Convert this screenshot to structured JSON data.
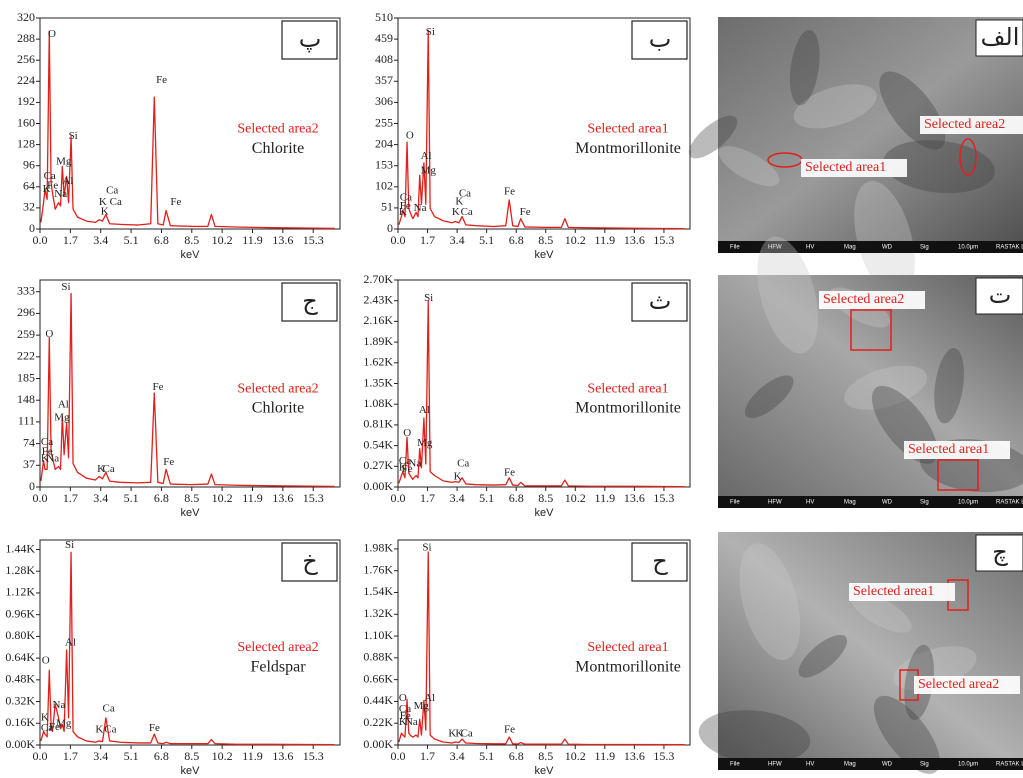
{
  "chart_data": [
    {
      "type": "line",
      "label": "پ",
      "area": "Selected area2",
      "mineral": "Chlorite",
      "xlabel": "keV",
      "color": "#e0201b",
      "xlim": [
        0,
        16.8
      ],
      "xticks": [
        {
          "value": 0,
          "label": "0.0"
        },
        1.7,
        3.4,
        5.1,
        6.8,
        8.5,
        10.2,
        11.9,
        13.6,
        15.3
      ],
      "ylim": [
        0,
        320
      ],
      "yticks": [
        0,
        32,
        64,
        96,
        128,
        160,
        192,
        224,
        256,
        288,
        320
      ],
      "x": [
        0.05,
        0.2,
        0.28,
        0.4,
        0.52,
        0.62,
        0.7,
        0.85,
        1.04,
        1.15,
        1.25,
        1.35,
        1.49,
        1.6,
        1.74,
        1.85,
        2.1,
        2.6,
        3.1,
        3.31,
        3.5,
        3.69,
        3.9,
        4.5,
        5.5,
        6.2,
        6.4,
        6.6,
        6.9,
        7.06,
        7.3,
        8.5,
        9.4,
        9.6,
        9.8,
        11,
        13,
        16.5
      ],
      "values": [
        10,
        40,
        60,
        45,
        300,
        70,
        55,
        30,
        40,
        35,
        95,
        50,
        80,
        40,
        140,
        30,
        18,
        12,
        10,
        14,
        12,
        22,
        8,
        7,
        6,
        8,
        200,
        8,
        6,
        28,
        5,
        4,
        4,
        22,
        4,
        3,
        2,
        1
      ],
      "annotations": [
        {
          "text": "O",
          "x": 0.45,
          "y": 295
        },
        {
          "text": "Si",
          "x": 1.6,
          "y": 140
        },
        {
          "text": "Mg",
          "x": 0.9,
          "y": 102
        },
        {
          "text": "Ca",
          "x": 0.2,
          "y": 80
        },
        {
          "text": "Al",
          "x": 1.25,
          "y": 72
        },
        {
          "text": "Fe",
          "x": 0.4,
          "y": 65
        },
        {
          "text": "K",
          "x": 0.15,
          "y": 60
        },
        {
          "text": "Na",
          "x": 0.8,
          "y": 52
        },
        {
          "text": "Fe",
          "x": 6.5,
          "y": 225
        },
        {
          "text": "Fe",
          "x": 7.3,
          "y": 40
        },
        {
          "text": "Ca",
          "x": 3.7,
          "y": 58
        },
        {
          "text": "K",
          "x": 3.3,
          "y": 40
        },
        {
          "text": "Ca",
          "x": 3.9,
          "y": 40
        },
        {
          "text": "K",
          "x": 3.4,
          "y": 26
        }
      ]
    },
    {
      "type": "line",
      "label": "ب",
      "area": "Selected area1",
      "mineral": "Montmorillonite",
      "xlabel": "keV",
      "color": "#e0201b",
      "xlim": [
        0,
        16.8
      ],
      "xticks": [
        {
          "value": 0,
          "label": "0.0"
        },
        1.7,
        3.4,
        5.1,
        6.8,
        8.5,
        10.2,
        11.9,
        13.6,
        15.3
      ],
      "ylim": [
        0,
        510
      ],
      "yticks": [
        0,
        51,
        102,
        153,
        204,
        255,
        306,
        357,
        408,
        459,
        510
      ],
      "x": [
        0.05,
        0.2,
        0.28,
        0.4,
        0.52,
        0.62,
        0.7,
        0.85,
        1.04,
        1.15,
        1.25,
        1.35,
        1.49,
        1.6,
        1.74,
        1.85,
        2.1,
        2.6,
        3.1,
        3.31,
        3.5,
        3.69,
        3.9,
        4.5,
        5.5,
        6.2,
        6.4,
        6.6,
        6.9,
        7.06,
        7.3,
        8.5,
        9.4,
        9.6,
        9.8,
        11,
        13,
        16.5
      ],
      "values": [
        10,
        30,
        45,
        30,
        210,
        50,
        40,
        25,
        40,
        30,
        130,
        60,
        160,
        60,
        480,
        50,
        30,
        20,
        15,
        18,
        15,
        30,
        10,
        8,
        6,
        8,
        70,
        8,
        6,
        25,
        5,
        4,
        4,
        25,
        4,
        3,
        2,
        1
      ],
      "annotations": [
        {
          "text": "Si",
          "x": 1.6,
          "y": 475
        },
        {
          "text": "O",
          "x": 0.45,
          "y": 225
        },
        {
          "text": "Al",
          "x": 1.3,
          "y": 175
        },
        {
          "text": "Mg",
          "x": 1.3,
          "y": 140
        },
        {
          "text": "Ca",
          "x": 0.1,
          "y": 75
        },
        {
          "text": "Na",
          "x": 0.9,
          "y": 50
        },
        {
          "text": "Fe",
          "x": 0.1,
          "y": 55
        },
        {
          "text": "K",
          "x": 0.05,
          "y": 40
        },
        {
          "text": "Fe",
          "x": 6.1,
          "y": 90
        },
        {
          "text": "Fe",
          "x": 7.0,
          "y": 40
        },
        {
          "text": "Ca",
          "x": 3.5,
          "y": 85
        },
        {
          "text": "K",
          "x": 3.3,
          "y": 65
        },
        {
          "text": "K",
          "x": 3.1,
          "y": 40
        },
        {
          "text": "Ca",
          "x": 3.6,
          "y": 40
        }
      ]
    },
    {
      "type": "line",
      "label": "ج",
      "area": "Selected area2",
      "mineral": "Chlorite",
      "xlabel": "keV",
      "color": "#e0201b",
      "xlim": [
        0,
        16.8
      ],
      "xticks": [
        {
          "value": 0,
          "label": "0.0"
        },
        1.7,
        3.4,
        5.1,
        6.8,
        8.5,
        10.2,
        11.9,
        13.6,
        15.3
      ],
      "ylim": [
        0,
        353
      ],
      "yticks": [
        0,
        37,
        74,
        111,
        148,
        185,
        222,
        259,
        296,
        333
      ],
      "x": [
        0.05,
        0.2,
        0.28,
        0.4,
        0.52,
        0.62,
        0.7,
        0.85,
        1.04,
        1.15,
        1.25,
        1.35,
        1.49,
        1.6,
        1.74,
        1.85,
        2.1,
        2.6,
        3.1,
        3.31,
        3.5,
        3.69,
        3.9,
        4.5,
        5.5,
        6.2,
        6.4,
        6.6,
        6.9,
        7.06,
        7.3,
        8.5,
        9.4,
        9.6,
        9.8,
        11,
        13,
        16.5
      ],
      "values": [
        10,
        45,
        30,
        30,
        255,
        60,
        50,
        30,
        35,
        30,
        120,
        55,
        110,
        50,
        330,
        40,
        25,
        15,
        12,
        18,
        14,
        25,
        10,
        8,
        7,
        8,
        160,
        8,
        6,
        30,
        5,
        4,
        5,
        22,
        4,
        3,
        2,
        1
      ],
      "annotations": [
        {
          "text": "Si",
          "x": 1.2,
          "y": 340
        },
        {
          "text": "O",
          "x": 0.3,
          "y": 260
        },
        {
          "text": "Al",
          "x": 1.0,
          "y": 140
        },
        {
          "text": "Mg",
          "x": 0.8,
          "y": 118
        },
        {
          "text": "Ca",
          "x": 0.05,
          "y": 76
        },
        {
          "text": "Fe",
          "x": 0.1,
          "y": 60
        },
        {
          "text": "K",
          "x": 0.05,
          "y": 48
        },
        {
          "text": "Na",
          "x": 0.35,
          "y": 48
        },
        {
          "text": "Fe",
          "x": 6.3,
          "y": 170
        },
        {
          "text": "Fe",
          "x": 6.9,
          "y": 42
        },
        {
          "text": "K",
          "x": 3.2,
          "y": 30
        },
        {
          "text": "Ca",
          "x": 3.5,
          "y": 30
        }
      ]
    },
    {
      "type": "line",
      "label": "ث",
      "area": "Selected area1",
      "mineral": "Montmorillonite",
      "xlabel": "keV",
      "color": "#e0201b",
      "xlim": [
        0,
        16.8
      ],
      "xticks": [
        {
          "value": 0,
          "label": "0.0"
        },
        1.7,
        3.4,
        5.1,
        6.8,
        8.5,
        10.2,
        11.9,
        13.6,
        15.3
      ],
      "ylim": [
        0,
        2700
      ],
      "yticks": [
        {
          "value": 0,
          "label": "0.00K"
        },
        {
          "value": 270,
          "label": "0.27K"
        },
        {
          "value": 540,
          "label": "0.54K"
        },
        {
          "value": 810,
          "label": "0.81K"
        },
        {
          "value": 1080,
          "label": "1.08K"
        },
        {
          "value": 1350,
          "label": "1.35K"
        },
        {
          "value": 1620,
          "label": "1.62K"
        },
        {
          "value": 1890,
          "label": "1.89K"
        },
        {
          "value": 2160,
          "label": "2.16K"
        },
        {
          "value": 2430,
          "label": "2.43K"
        },
        {
          "value": 2700,
          "label": "2.70K"
        }
      ],
      "x": [
        0.05,
        0.2,
        0.28,
        0.4,
        0.52,
        0.62,
        0.7,
        0.85,
        1.04,
        1.15,
        1.25,
        1.35,
        1.49,
        1.6,
        1.74,
        1.85,
        2.1,
        2.6,
        3.1,
        3.31,
        3.5,
        3.69,
        3.9,
        4.5,
        5.5,
        6.2,
        6.4,
        6.6,
        6.9,
        7.06,
        7.3,
        8.5,
        9.4,
        9.6,
        9.8,
        11,
        13,
        16.5
      ],
      "values": [
        50,
        150,
        200,
        120,
        650,
        180,
        150,
        100,
        150,
        120,
        500,
        250,
        900,
        300,
        2430,
        200,
        150,
        80,
        60,
        70,
        60,
        120,
        40,
        30,
        25,
        30,
        120,
        25,
        20,
        60,
        15,
        15,
        15,
        90,
        15,
        10,
        10,
        5
      ],
      "annotations": [
        {
          "text": "Si",
          "x": 1.5,
          "y": 2460
        },
        {
          "text": "O",
          "x": 0.3,
          "y": 700
        },
        {
          "text": "Al",
          "x": 1.2,
          "y": 1000
        },
        {
          "text": "Mg",
          "x": 1.1,
          "y": 570
        },
        {
          "text": "Ca",
          "x": 0.05,
          "y": 330
        },
        {
          "text": "Na",
          "x": 0.6,
          "y": 300
        },
        {
          "text": "K",
          "x": 0.05,
          "y": 250
        },
        {
          "text": "Fe",
          "x": 0.2,
          "y": 230
        },
        {
          "text": "Ca",
          "x": 3.4,
          "y": 300
        },
        {
          "text": "K",
          "x": 3.2,
          "y": 130
        },
        {
          "text": "Fe",
          "x": 6.1,
          "y": 180
        }
      ]
    },
    {
      "type": "line",
      "label": "خ",
      "area": "Selected area2",
      "mineral": "Feldspar",
      "xlabel": "keV",
      "color": "#e0201b",
      "xlim": [
        0,
        16.8
      ],
      "xticks": [
        {
          "value": 0,
          "label": "0.0"
        },
        1.7,
        3.4,
        5.1,
        6.8,
        8.5,
        10.2,
        11.9,
        13.6,
        15.3
      ],
      "ylim": [
        0,
        1510
      ],
      "yticks": [
        {
          "value": 0,
          "label": "0.00K"
        },
        {
          "value": 160,
          "label": "0.16K"
        },
        {
          "value": 320,
          "label": "0.32K"
        },
        {
          "value": 480,
          "label": "0.48K"
        },
        {
          "value": 640,
          "label": "0.64K"
        },
        {
          "value": 800,
          "label": "0.80K"
        },
        {
          "value": 960,
          "label": "0.96K"
        },
        {
          "value": 1120,
          "label": "1.12K"
        },
        {
          "value": 1280,
          "label": "1.28K"
        },
        {
          "value": 1440,
          "label": "1.44K"
        }
      ],
      "x": [
        0.05,
        0.2,
        0.28,
        0.4,
        0.52,
        0.62,
        0.7,
        0.85,
        1.04,
        1.15,
        1.25,
        1.35,
        1.49,
        1.6,
        1.74,
        1.85,
        2.1,
        2.6,
        3.1,
        3.31,
        3.5,
        3.69,
        3.9,
        4.5,
        5.5,
        6.2,
        6.4,
        6.6,
        6.9,
        7.06,
        7.3,
        8.5,
        9.4,
        9.6,
        9.8,
        11,
        13,
        16.5
      ],
      "values": [
        30,
        100,
        80,
        60,
        550,
        150,
        100,
        300,
        200,
        120,
        150,
        100,
        700,
        200,
        1420,
        100,
        60,
        30,
        20,
        30,
        25,
        200,
        30,
        20,
        15,
        15,
        80,
        15,
        10,
        20,
        10,
        10,
        10,
        40,
        10,
        5,
        5,
        3
      ],
      "annotations": [
        {
          "text": "Si",
          "x": 1.4,
          "y": 1470
        },
        {
          "text": "O",
          "x": 0.1,
          "y": 620
        },
        {
          "text": "Al",
          "x": 1.4,
          "y": 750
        },
        {
          "text": "Na",
          "x": 0.7,
          "y": 290
        },
        {
          "text": "K",
          "x": 0.05,
          "y": 200
        },
        {
          "text": "Mg",
          "x": 0.9,
          "y": 155
        },
        {
          "text": "Fe",
          "x": 0.5,
          "y": 130
        },
        {
          "text": "Ca",
          "x": 0.05,
          "y": 120
        },
        {
          "text": "Ca",
          "x": 3.5,
          "y": 265
        },
        {
          "text": "K",
          "x": 3.1,
          "y": 110
        },
        {
          "text": "Ca",
          "x": 3.6,
          "y": 110
        },
        {
          "text": "Fe",
          "x": 6.1,
          "y": 120
        }
      ]
    },
    {
      "type": "line",
      "label": "ح",
      "area": "Selected area1",
      "mineral": "Montmorillonite",
      "xlabel": "keV",
      "color": "#e0201b",
      "xlim": [
        0,
        16.8
      ],
      "xticks": [
        {
          "value": 0,
          "label": "0.0"
        },
        1.7,
        3.4,
        5.1,
        6.8,
        8.5,
        10.2,
        11.9,
        13.6,
        15.3
      ],
      "ylim": [
        0,
        2070
      ],
      "yticks": [
        {
          "value": 0,
          "label": "0.00K"
        },
        {
          "value": 220,
          "label": "0.22K"
        },
        {
          "value": 440,
          "label": "0.44K"
        },
        {
          "value": 660,
          "label": "0.66K"
        },
        {
          "value": 880,
          "label": "0.88K"
        },
        {
          "value": 1100,
          "label": "1.10K"
        },
        {
          "value": 1320,
          "label": "1.32K"
        },
        {
          "value": 1540,
          "label": "1.54K"
        },
        {
          "value": 1760,
          "label": "1.76K"
        },
        {
          "value": 1980,
          "label": "1.98K"
        }
      ],
      "x": [
        0.05,
        0.2,
        0.28,
        0.4,
        0.52,
        0.62,
        0.7,
        0.85,
        1.04,
        1.15,
        1.25,
        1.35,
        1.49,
        1.6,
        1.74,
        1.85,
        2.1,
        2.6,
        3.1,
        3.31,
        3.5,
        3.69,
        3.9,
        4.5,
        5.5,
        6.2,
        6.4,
        6.6,
        6.9,
        7.06,
        7.3,
        8.5,
        9.4,
        9.6,
        9.8,
        11,
        13,
        16.5
      ],
      "values": [
        30,
        120,
        100,
        80,
        460,
        120,
        100,
        80,
        100,
        80,
        260,
        100,
        450,
        150,
        1950,
        100,
        60,
        30,
        20,
        30,
        25,
        60,
        20,
        15,
        12,
        12,
        80,
        12,
        10,
        25,
        8,
        8,
        8,
        60,
        8,
        5,
        5,
        3
      ],
      "annotations": [
        {
          "text": "Si",
          "x": 1.4,
          "y": 1990
        },
        {
          "text": "O",
          "x": 0.05,
          "y": 470
        },
        {
          "text": "Al",
          "x": 1.5,
          "y": 470
        },
        {
          "text": "Mg",
          "x": 0.9,
          "y": 390
        },
        {
          "text": "Ca",
          "x": 0.05,
          "y": 360
        },
        {
          "text": "Fe",
          "x": 0.1,
          "y": 290
        },
        {
          "text": "K",
          "x": 0.05,
          "y": 230
        },
        {
          "text": "Na",
          "x": 0.4,
          "y": 230
        },
        {
          "text": "K",
          "x": 2.9,
          "y": 110
        },
        {
          "text": "K",
          "x": 3.3,
          "y": 110
        },
        {
          "text": "Ca",
          "x": 3.6,
          "y": 110
        },
        {
          "text": "Fe",
          "x": 6.1,
          "y": 150
        }
      ]
    }
  ],
  "images": [
    {
      "label": "الف",
      "areas": [
        "Selected area1",
        "Selected area2"
      ],
      "footer": [
        "File",
        "HFW",
        "HV",
        "Mag",
        "WD",
        "Sig",
        "10.0μm",
        "RASTAK Lab."
      ]
    },
    {
      "label": "ت",
      "areas": [
        "Selected area1",
        "Selected area2"
      ],
      "footer": [
        "File",
        "HFW",
        "HV",
        "Mag",
        "WD",
        "Sig",
        "10.0μm",
        "RASTAK Lab."
      ]
    },
    {
      "label": "چ",
      "areas": [
        "Selected area1",
        "Selected area2"
      ],
      "footer": [
        "File",
        "HFW",
        "HV",
        "Mag",
        "WD",
        "Sig",
        "10.0μm",
        "RASTAK Lab."
      ]
    }
  ]
}
